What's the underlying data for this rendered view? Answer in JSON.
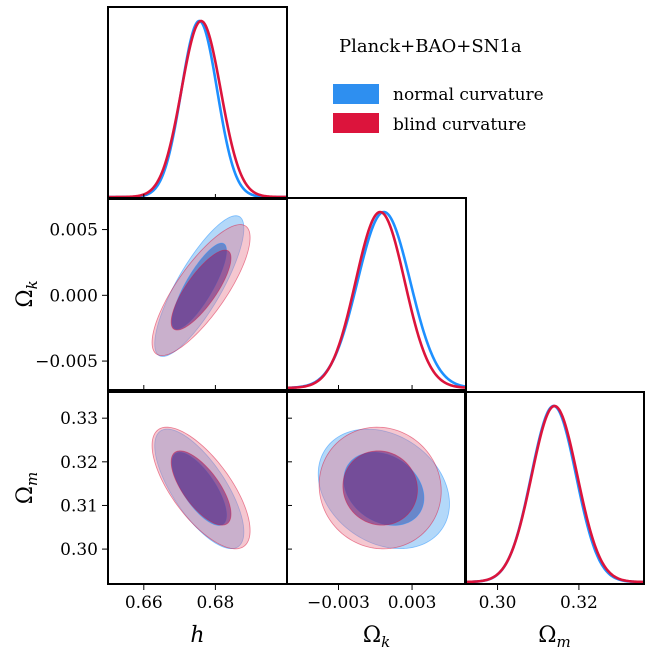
{
  "chart_data": {
    "type": "triangle-corner",
    "title": "Planck+BAO+SN1a",
    "parameters": [
      {
        "key": "h",
        "label": "h",
        "range": [
          0.65,
          0.7
        ],
        "ticks": [
          0.66,
          0.68
        ],
        "tick_labels": [
          "0.66",
          "0.68"
        ]
      },
      {
        "key": "ok",
        "label": "Ωk",
        "range": [
          -0.0072,
          0.0074
        ],
        "ticks": [
          -0.005,
          0.0,
          0.005
        ],
        "tick_labels": [
          "−0.005",
          "0.000",
          "0.005"
        ],
        "x_ticks": [
          -0.003,
          0.003
        ],
        "x_tick_labels": [
          "−0.003",
          "0.003"
        ]
      },
      {
        "key": "om",
        "label": "Ωm",
        "range": [
          0.292,
          0.336
        ],
        "ticks": [
          0.3,
          0.31,
          0.32,
          0.33
        ],
        "tick_labels": [
          "0.30",
          "0.31",
          "0.32",
          "0.33"
        ],
        "x_ticks": [
          0.3,
          0.32
        ],
        "x_tick_labels": [
          "0.30",
          "0.32"
        ]
      }
    ],
    "axis_labels": {
      "h": "h",
      "ok_sym": "Ω",
      "ok_sub": "k",
      "om_sym": "Ω",
      "om_sub": "m"
    },
    "series": [
      {
        "name": "normal curvature",
        "color": "#1e90ff",
        "h": {
          "mean": 0.6755,
          "sd": 0.005
        },
        "ok": {
          "mean": 0.0007,
          "sd": 0.00215
        },
        "om": {
          "mean": 0.3138,
          "sd": 0.0055
        },
        "corr": {
          "h_ok": 0.82,
          "h_om": -0.72,
          "ok_om": -0.25
        }
      },
      {
        "name": "blind curvature",
        "color": "#dc143c",
        "h": {
          "mean": 0.676,
          "sd": 0.0055
        },
        "ok": {
          "mean": 0.0004,
          "sd": 0.002
        },
        "om": {
          "mean": 0.314,
          "sd": 0.0056
        },
        "corr": {
          "h_ok": 0.8,
          "h_om": -0.7,
          "ok_om": -0.05
        }
      }
    ],
    "grid": false,
    "legend_position": "top-right"
  }
}
